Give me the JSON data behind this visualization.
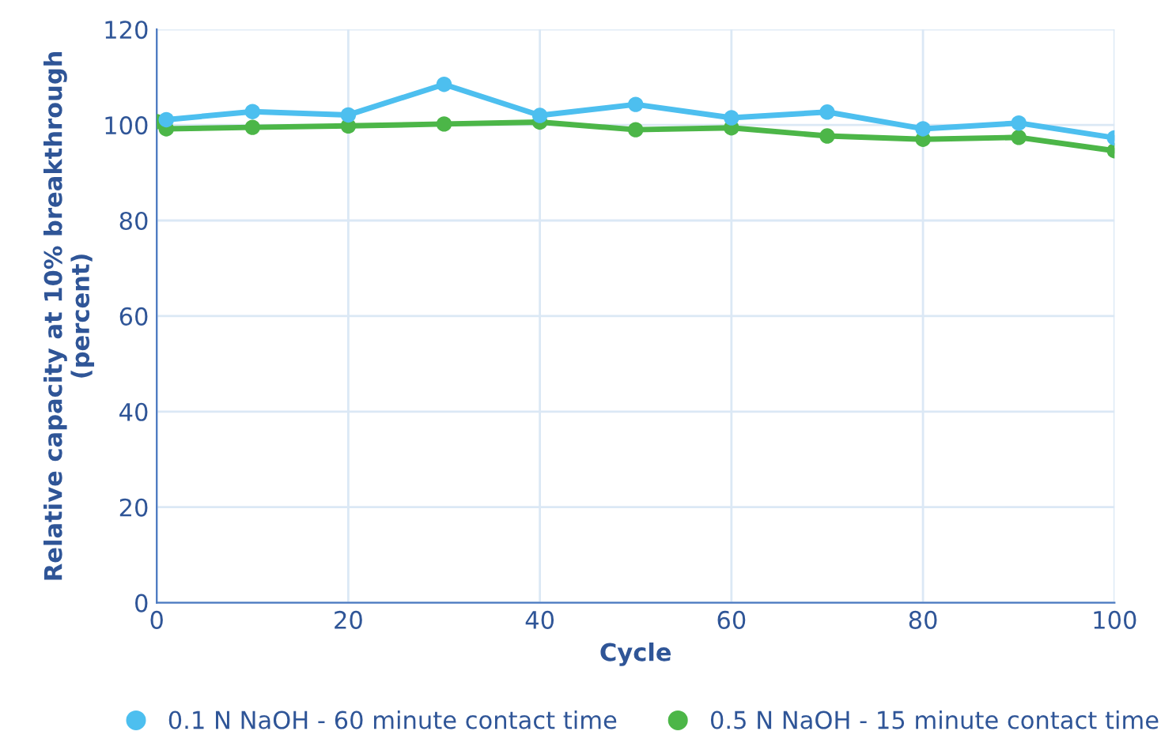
{
  "chart_data": {
    "type": "line",
    "xlabel": "Cycle",
    "ylabel": "Relative capacity at 10% breakthrough\n(percent)",
    "xlim": [
      0,
      100
    ],
    "xticks": [
      0,
      20,
      40,
      60,
      80,
      100
    ],
    "ylim": [
      0,
      120
    ],
    "yticks": [
      0,
      20,
      40,
      60,
      80,
      100,
      120
    ],
    "grid": true,
    "legend": "bottom",
    "marker": "circle",
    "line_style": "solid",
    "series": [
      {
        "name": "0.1 N NaOH - 60 minute contact time",
        "color": "#4dbfef",
        "x": [
          1,
          10,
          20,
          30,
          40,
          50,
          60,
          70,
          80,
          90,
          100
        ],
        "values": [
          101.1,
          102.8,
          102.1,
          108.5,
          102,
          104.3,
          101.5,
          102.7,
          99.2,
          100.4,
          97.3
        ]
      },
      {
        "name": "0.5 N NaOH - 15 minute contact time",
        "color": "#4cb648",
        "x": [
          0,
          1,
          10,
          20,
          30,
          40,
          50,
          60,
          70,
          80,
          90,
          100
        ],
        "values": [
          100.7,
          99.2,
          99.5,
          99.8,
          100.2,
          100.6,
          99,
          99.4,
          97.7,
          97,
          97.4,
          94.6
        ]
      }
    ]
  }
}
